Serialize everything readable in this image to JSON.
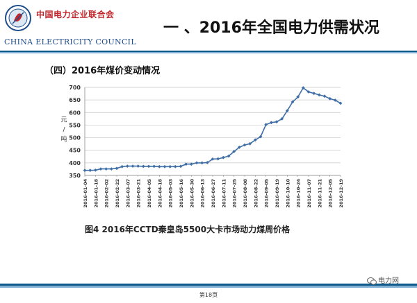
{
  "header": {
    "org_name": "中国电力企业联合会",
    "org_name_en": "CHINA ELECTRICITY COUNCIL",
    "slide_title": "一 、2016年全国电力供需状况",
    "colors": {
      "title": "#111111",
      "org": "#c0262c",
      "org_en": "#1f4e8c",
      "rule_top": "#0f5a8c",
      "rule_bottom": "#7fb0d4"
    }
  },
  "section_heading": "（四）2016年煤价变动情况",
  "chart_data": {
    "type": "line",
    "y_label_chars": [
      "元",
      "/",
      "吨"
    ],
    "ylim": [
      350,
      700
    ],
    "yticks": [
      350,
      400,
      450,
      500,
      550,
      600,
      650,
      700
    ],
    "grid": true,
    "legend": "none",
    "color": "#3f6ea6",
    "x_tick_labels": [
      "2016-01-04",
      "2016-01-18",
      "2016-02-02",
      "2016-02-22",
      "2016-03-07",
      "2016-03-21",
      "2016-04-05",
      "2016-04-18",
      "2016-05-03",
      "2016-05-16",
      "2016-05-30",
      "2016-06-13",
      "2016-06-27",
      "2016-07-11",
      "2016-07-25",
      "2016-08-08",
      "2016-08-22",
      "2016-09-05",
      "2016-09-19",
      "2016-10-10",
      "2016-10-24",
      "2016-11-07",
      "2016-11-21",
      "2016-12-05",
      "2016-12-19"
    ],
    "values": [
      370,
      370,
      371,
      376,
      376,
      376,
      378,
      385,
      387,
      387,
      387,
      386,
      386,
      386,
      385,
      385,
      385,
      385,
      386,
      395,
      395,
      400,
      400,
      401,
      415,
      416,
      421,
      427,
      445,
      462,
      471,
      476,
      491,
      504,
      552,
      560,
      563,
      575,
      607,
      642,
      662,
      698,
      682,
      676,
      670,
      665,
      655,
      649,
      637
    ]
  },
  "caption": "图4  2016年CCTD秦皇岛5500大卡市场动力煤周价格",
  "footer": {
    "page_number": "第18页",
    "watermark": "电力网",
    "colors": {
      "rule_top": "#0f5a8c",
      "rule_bottom": "#7fb0d4"
    }
  }
}
